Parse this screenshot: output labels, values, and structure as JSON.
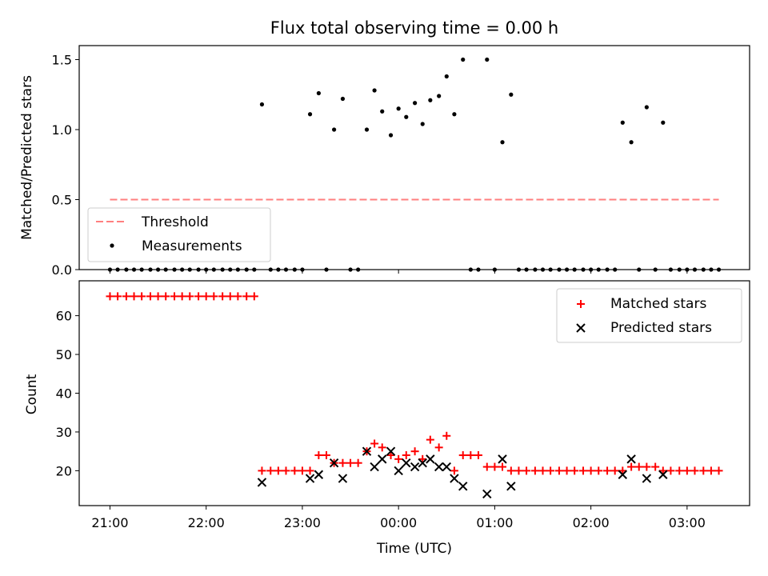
{
  "chart_data": {
    "type": "scatter",
    "title": "Flux total observing time = 0.00 h",
    "xlabel": "Time (UTC)",
    "x_unit": "hours (UTC), values above 24 are after midnight",
    "xlim": [
      20.68,
      27.65
    ],
    "xticks": [
      {
        "value": 21,
        "label": "21:00"
      },
      {
        "value": 22,
        "label": "22:00"
      },
      {
        "value": 23,
        "label": "23:00"
      },
      {
        "value": 24,
        "label": "00:00"
      },
      {
        "value": 25,
        "label": "01:00"
      },
      {
        "value": 26,
        "label": "02:00"
      },
      {
        "value": 27,
        "label": "03:00"
      }
    ],
    "top": {
      "ylabel": "Matched/Predicted stars",
      "ylim": [
        0,
        1.6
      ],
      "yticks": [
        0.0,
        0.5,
        1.0,
        1.5
      ],
      "ytick_labels": [
        "0.0",
        "0.5",
        "1.0",
        "1.5"
      ],
      "legend": {
        "position": "lower-left",
        "threshold_label": "Threshold",
        "measurements_label": "Measurements"
      },
      "threshold": {
        "name": "Threshold",
        "value": 0.5,
        "x_range": [
          21.0,
          27.33
        ],
        "color": "#ff7f7f",
        "style": "dashed"
      },
      "measurements": {
        "name": "Measurements",
        "color": "#000000",
        "points": [
          [
            21.0,
            0
          ],
          [
            21.08,
            0
          ],
          [
            21.17,
            0
          ],
          [
            21.25,
            0
          ],
          [
            21.33,
            0
          ],
          [
            21.42,
            0
          ],
          [
            21.5,
            0
          ],
          [
            21.58,
            0
          ],
          [
            21.67,
            0
          ],
          [
            21.75,
            0
          ],
          [
            21.83,
            0
          ],
          [
            21.92,
            0
          ],
          [
            22.0,
            0
          ],
          [
            22.08,
            0
          ],
          [
            22.17,
            0
          ],
          [
            22.25,
            0
          ],
          [
            22.33,
            0
          ],
          [
            22.42,
            0
          ],
          [
            22.5,
            0
          ],
          [
            22.58,
            1.18
          ],
          [
            22.67,
            0
          ],
          [
            22.75,
            0
          ],
          [
            22.83,
            0
          ],
          [
            22.92,
            0
          ],
          [
            23.0,
            0
          ],
          [
            23.08,
            1.11
          ],
          [
            23.17,
            1.26
          ],
          [
            23.25,
            0
          ],
          [
            23.33,
            1.0
          ],
          [
            23.42,
            1.22
          ],
          [
            23.5,
            0
          ],
          [
            23.58,
            0
          ],
          [
            23.67,
            1.0
          ],
          [
            23.75,
            1.28
          ],
          [
            23.83,
            1.13
          ],
          [
            23.92,
            0.96
          ],
          [
            24.0,
            1.15
          ],
          [
            24.08,
            1.09
          ],
          [
            24.17,
            1.19
          ],
          [
            24.25,
            1.04
          ],
          [
            24.33,
            1.21
          ],
          [
            24.42,
            1.24
          ],
          [
            24.5,
            1.38
          ],
          [
            24.58,
            1.11
          ],
          [
            24.67,
            1.5
          ],
          [
            24.75,
            0
          ],
          [
            24.83,
            0
          ],
          [
            24.92,
            1.5
          ],
          [
            25.0,
            0
          ],
          [
            25.08,
            0.91
          ],
          [
            25.17,
            1.25
          ],
          [
            25.25,
            0
          ],
          [
            25.33,
            0
          ],
          [
            25.42,
            0
          ],
          [
            25.5,
            0
          ],
          [
            25.58,
            0
          ],
          [
            25.67,
            0
          ],
          [
            25.75,
            0
          ],
          [
            25.83,
            0
          ],
          [
            25.92,
            0
          ],
          [
            26.0,
            0
          ],
          [
            26.08,
            0
          ],
          [
            26.17,
            0
          ],
          [
            26.25,
            0
          ],
          [
            26.33,
            1.05
          ],
          [
            26.42,
            0.91
          ],
          [
            26.5,
            0
          ],
          [
            26.58,
            1.16
          ],
          [
            26.67,
            0
          ],
          [
            26.75,
            1.05
          ],
          [
            26.83,
            0
          ],
          [
            26.92,
            0
          ],
          [
            27.0,
            0
          ],
          [
            27.08,
            0
          ],
          [
            27.17,
            0
          ],
          [
            27.25,
            0
          ],
          [
            27.33,
            0
          ]
        ]
      }
    },
    "bottom": {
      "ylabel": "Count",
      "ylim": [
        11,
        69
      ],
      "yticks": [
        20,
        30,
        40,
        50,
        60
      ],
      "ytick_labels": [
        "20",
        "30",
        "40",
        "50",
        "60"
      ],
      "legend": {
        "position": "top-right"
      },
      "series": [
        {
          "name": "Matched stars",
          "marker": "plus",
          "color": "#ff0000",
          "points": [
            [
              21.0,
              65
            ],
            [
              21.08,
              65
            ],
            [
              21.17,
              65
            ],
            [
              21.25,
              65
            ],
            [
              21.33,
              65
            ],
            [
              21.42,
              65
            ],
            [
              21.5,
              65
            ],
            [
              21.58,
              65
            ],
            [
              21.67,
              65
            ],
            [
              21.75,
              65
            ],
            [
              21.83,
              65
            ],
            [
              21.92,
              65
            ],
            [
              22.0,
              65
            ],
            [
              22.08,
              65
            ],
            [
              22.17,
              65
            ],
            [
              22.25,
              65
            ],
            [
              22.33,
              65
            ],
            [
              22.42,
              65
            ],
            [
              22.5,
              65
            ],
            [
              22.58,
              20
            ],
            [
              22.67,
              20
            ],
            [
              22.75,
              20
            ],
            [
              22.83,
              20
            ],
            [
              22.92,
              20
            ],
            [
              23.0,
              20
            ],
            [
              23.08,
              20
            ],
            [
              23.17,
              24
            ],
            [
              23.25,
              24
            ],
            [
              23.33,
              22
            ],
            [
              23.42,
              22
            ],
            [
              23.5,
              22
            ],
            [
              23.58,
              22
            ],
            [
              23.67,
              25
            ],
            [
              23.75,
              27
            ],
            [
              23.83,
              26
            ],
            [
              23.92,
              24
            ],
            [
              24.0,
              23
            ],
            [
              24.08,
              24
            ],
            [
              24.17,
              25
            ],
            [
              24.25,
              23
            ],
            [
              24.33,
              28
            ],
            [
              24.42,
              26
            ],
            [
              24.5,
              29
            ],
            [
              24.58,
              20
            ],
            [
              24.67,
              24
            ],
            [
              24.75,
              24
            ],
            [
              24.83,
              24
            ],
            [
              24.92,
              21
            ],
            [
              25.0,
              21
            ],
            [
              25.08,
              21
            ],
            [
              25.17,
              20
            ],
            [
              25.25,
              20
            ],
            [
              25.33,
              20
            ],
            [
              25.42,
              20
            ],
            [
              25.5,
              20
            ],
            [
              25.58,
              20
            ],
            [
              25.67,
              20
            ],
            [
              25.75,
              20
            ],
            [
              25.83,
              20
            ],
            [
              25.92,
              20
            ],
            [
              26.0,
              20
            ],
            [
              26.08,
              20
            ],
            [
              26.17,
              20
            ],
            [
              26.25,
              20
            ],
            [
              26.33,
              20
            ],
            [
              26.42,
              21
            ],
            [
              26.5,
              21
            ],
            [
              26.58,
              21
            ],
            [
              26.67,
              21
            ],
            [
              26.75,
              20
            ],
            [
              26.83,
              20
            ],
            [
              26.92,
              20
            ],
            [
              27.0,
              20
            ],
            [
              27.08,
              20
            ],
            [
              27.17,
              20
            ],
            [
              27.25,
              20
            ],
            [
              27.33,
              20
            ]
          ]
        },
        {
          "name": "Predicted stars",
          "marker": "x",
          "color": "#000000",
          "points": [
            [
              22.58,
              17
            ],
            [
              23.08,
              18
            ],
            [
              23.17,
              19
            ],
            [
              23.33,
              22
            ],
            [
              23.42,
              18
            ],
            [
              23.67,
              25
            ],
            [
              23.75,
              21
            ],
            [
              23.83,
              23
            ],
            [
              23.92,
              25
            ],
            [
              24.0,
              20
            ],
            [
              24.08,
              22
            ],
            [
              24.17,
              21
            ],
            [
              24.25,
              22
            ],
            [
              24.33,
              23
            ],
            [
              24.42,
              21
            ],
            [
              24.5,
              21
            ],
            [
              24.58,
              18
            ],
            [
              24.67,
              16
            ],
            [
              24.92,
              14
            ],
            [
              25.08,
              23
            ],
            [
              25.17,
              16
            ],
            [
              26.33,
              19
            ],
            [
              26.42,
              23
            ],
            [
              26.58,
              18
            ],
            [
              26.75,
              19
            ]
          ]
        }
      ]
    }
  }
}
